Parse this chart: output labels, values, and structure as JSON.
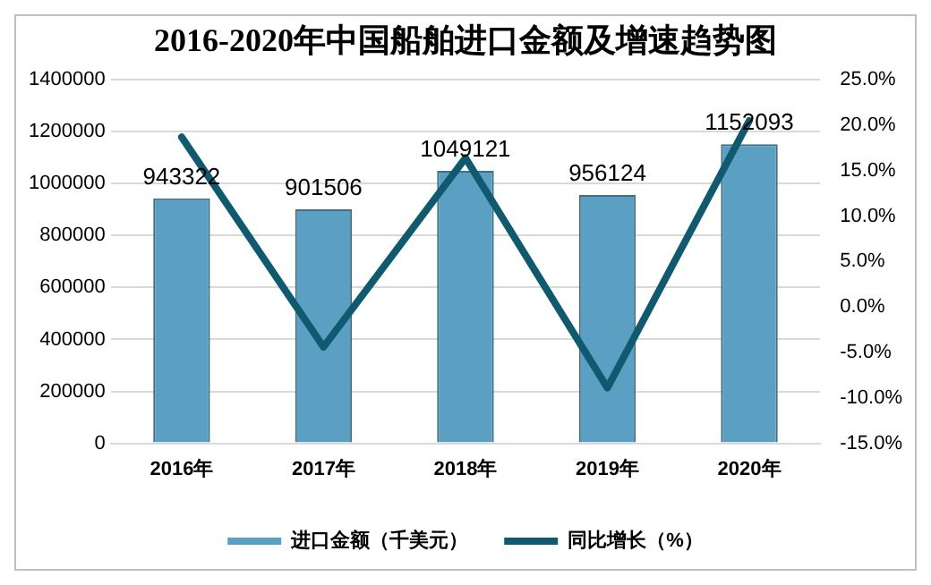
{
  "chart_data": {
    "type": "bar",
    "title": "2016-2020年中国船舶进口金额及增速趋势图",
    "categories": [
      "2016年",
      "2017年",
      "2018年",
      "2019年",
      "2020年"
    ],
    "series": [
      {
        "name": "进口金额（千美元）",
        "color": "#5b9fc2",
        "values": [
          943322,
          901506,
          1049121,
          956124,
          1152093
        ]
      },
      {
        "name": "同比增长（%）",
        "type": "line",
        "axis": "y2",
        "color": "#0f5a6e",
        "values": [
          18.7,
          -4.4,
          16.4,
          -8.9,
          20.5
        ]
      }
    ],
    "ylim": [
      0,
      1400000
    ],
    "yticks": [
      0,
      200000,
      400000,
      600000,
      800000,
      1000000,
      1200000,
      1400000
    ],
    "y2lim": [
      -15,
      25
    ],
    "y2ticks": [
      {
        "value": -15,
        "label": "-15.0%"
      },
      {
        "value": -10,
        "label": "-10.0%"
      },
      {
        "value": -5,
        "label": "-5.0%"
      },
      {
        "value": 0,
        "label": "0.0%"
      },
      {
        "value": 5,
        "label": "5.0%"
      },
      {
        "value": 10,
        "label": "10.0%"
      },
      {
        "value": 15,
        "label": "15.0%"
      },
      {
        "value": 20,
        "label": "20.0%"
      },
      {
        "value": 25,
        "label": "25.0%"
      }
    ],
    "value_labels": [
      "943322",
      "901506",
      "1049121",
      "956124",
      "1152093"
    ],
    "grid": "y",
    "legend": "bottom",
    "marker": "none"
  }
}
